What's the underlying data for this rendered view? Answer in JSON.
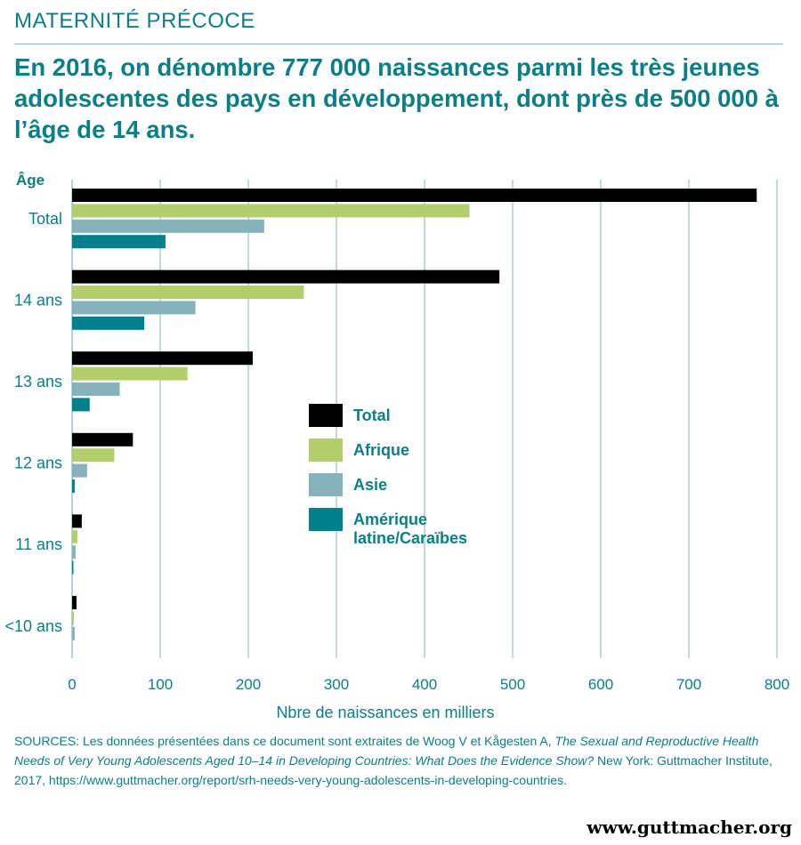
{
  "header": {
    "kicker": "MATERNITÉ PRÉCOCE",
    "title": "En 2016, on dénombre 777 000 naissances parmi les très jeunes adolescentes des pays en développement, dont près de 500 000 à l’âge de 14 ans."
  },
  "chart_data": {
    "type": "bar",
    "orientation": "horizontal",
    "ylabel": "Âge",
    "xlabel": "Nbre de naissances en milliers",
    "categories": [
      "Total",
      "14 ans",
      "13 ans",
      "12 ans",
      "11 ans",
      "<10 ans"
    ],
    "series": [
      {
        "name": "Total",
        "color": "#000000",
        "values": [
          777,
          485,
          205,
          69,
          11,
          5
        ]
      },
      {
        "name": "Afrique",
        "color": "#b2cf6b",
        "values": [
          451,
          263,
          131,
          48,
          6,
          2
        ]
      },
      {
        "name": "Asie",
        "color": "#86b2bb",
        "values": [
          218,
          140,
          54,
          17,
          4,
          3
        ]
      },
      {
        "name": "Amérique latine/Caraïbes",
        "color": "#00808a",
        "values": [
          106,
          82,
          20,
          3,
          1,
          0
        ]
      }
    ],
    "legend_labels": [
      [
        "Total"
      ],
      [
        "Afrique"
      ],
      [
        "Asie"
      ],
      [
        "Amérique",
        "latine/Caraïbes"
      ]
    ],
    "xlim": [
      0,
      800
    ],
    "xticks": [
      0,
      100,
      200,
      300,
      400,
      500,
      600,
      700,
      800
    ],
    "grid": true,
    "gridColor": "#7fb6bb",
    "legend_position": "center-right"
  },
  "sources": {
    "lead": "SOURCES: Les données présentées dans ce document sont extraites de Woog V et Kågesten A, ",
    "title_italic": "The Sexual and Reproductive Health Needs of Very Young Adolescents Aged 10–14 in Developing Countries: What Does the Evidence Show?",
    "tail": " New York: Guttmacher Institute, 2017, https://www.guttmacher.org/report/srh-needs-very-young-adolescents-in-developing-countries."
  },
  "footer": {
    "website": "www.guttmacher.org"
  }
}
